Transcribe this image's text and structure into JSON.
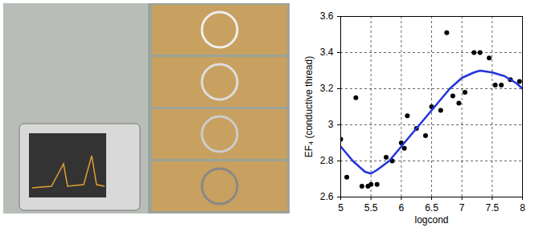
{
  "chart_data": {
    "type": "scatter",
    "x_label": "logcond",
    "y_label": "EF₄ (conductive thread)",
    "xlim": [
      5,
      8
    ],
    "xticks": [
      5,
      5.5,
      6,
      6.5,
      7,
      7.5,
      8
    ],
    "ylim": [
      2.6,
      3.6
    ],
    "yticks": [
      2.6,
      2.8,
      3,
      3.2,
      3.4,
      3.6
    ],
    "grid": true,
    "series": [
      {
        "type": "scatter",
        "color": "#000000",
        "marker": "circle",
        "x": [
          5.0,
          5.1,
          5.25,
          5.35,
          5.45,
          5.5,
          5.6,
          5.75,
          5.85,
          6.0,
          6.05,
          6.1,
          6.25,
          6.4,
          6.5,
          6.65,
          6.75,
          6.85,
          6.95,
          7.05,
          7.2,
          7.3,
          7.45,
          7.55,
          7.65,
          7.8,
          7.95
        ],
        "values": [
          2.92,
          2.71,
          3.15,
          2.66,
          2.66,
          2.67,
          2.67,
          2.82,
          2.8,
          2.9,
          2.87,
          3.05,
          2.98,
          2.94,
          3.1,
          3.08,
          3.51,
          3.16,
          3.12,
          3.18,
          3.4,
          3.4,
          3.37,
          3.22,
          3.22,
          3.25,
          3.24
        ]
      },
      {
        "type": "line",
        "color": "#2233dd",
        "line_style": "solid",
        "x": [
          5.0,
          5.2,
          5.4,
          5.5,
          5.6,
          5.8,
          6.0,
          6.2,
          6.4,
          6.6,
          6.8,
          7.0,
          7.2,
          7.3,
          7.5,
          7.7,
          7.9,
          8.0
        ],
        "values": [
          2.88,
          2.8,
          2.74,
          2.73,
          2.75,
          2.8,
          2.88,
          2.96,
          3.04,
          3.12,
          3.2,
          3.26,
          3.29,
          3.3,
          3.29,
          3.27,
          3.23,
          3.2
        ]
      }
    ]
  }
}
